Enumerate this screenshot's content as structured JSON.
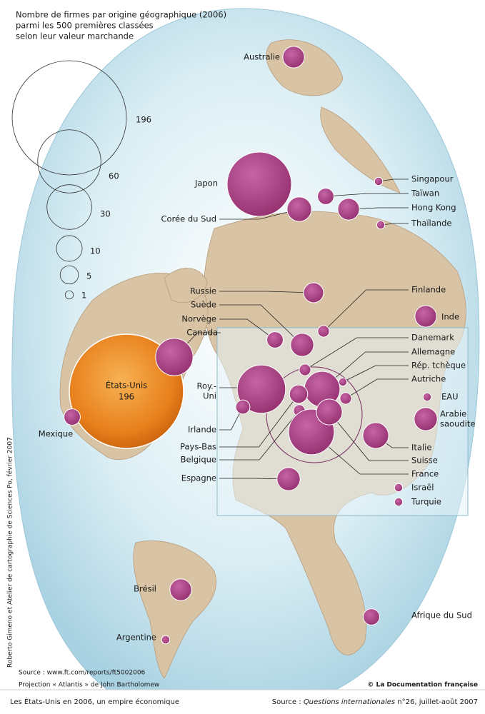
{
  "title_lines": [
    "Nombre de firmes par origine géographique (2006)",
    "parmi les 500 premières classées",
    "selon leur valeur marchande"
  ],
  "legend": {
    "sizes": [
      196,
      60,
      30,
      10,
      5,
      1
    ]
  },
  "countries": [
    {
      "name": "États-Unis",
      "firms": 196
    },
    {
      "name": "Canada",
      "firms": 21
    },
    {
      "name": "Mexique",
      "firms": 4
    },
    {
      "name": "Japon",
      "firms": 62
    },
    {
      "name": "Corée du Sud",
      "firms": 9
    },
    {
      "name": "Australie",
      "firms": 7
    },
    {
      "name": "Singapour",
      "firms": 1
    },
    {
      "name": "Taïwan",
      "firms": 4
    },
    {
      "name": "Hong Kong",
      "firms": 7
    },
    {
      "name": "Thaïlande",
      "firms": 1
    },
    {
      "name": "Russie",
      "firms": 6
    },
    {
      "name": "Finlande",
      "firms": 2
    },
    {
      "name": "Inde",
      "firms": 7
    },
    {
      "name": "Suède",
      "firms": 8
    },
    {
      "name": "Norvège",
      "firms": 4
    },
    {
      "name": "Danemark",
      "firms": 2
    },
    {
      "name": "Allemagne",
      "firms": 19
    },
    {
      "name": "Rép. tchèque",
      "firms": 1
    },
    {
      "name": "Autriche",
      "firms": 2
    },
    {
      "name": "EAU",
      "firms": 1
    },
    {
      "name": [
        "Arabie",
        "saoudite"
      ],
      "firms": 8
    },
    {
      "name": [
        "Roy.-",
        "Uni"
      ],
      "firms": 35
    },
    {
      "name": "Irlande",
      "firms": 3
    },
    {
      "name": "Pays-Bas",
      "firms": 5
    },
    {
      "name": "Belgique",
      "firms": 2
    },
    {
      "name": "France",
      "firms": 31
    },
    {
      "name": "Suisse",
      "firms": 10
    },
    {
      "name": "Italie",
      "firms": 10
    },
    {
      "name": "Espagne",
      "firms": 8
    },
    {
      "name": "Israël",
      "firms": 1
    },
    {
      "name": "Turquie",
      "firms": 1
    },
    {
      "name": "Brésil",
      "firms": 7
    },
    {
      "name": "Argentine",
      "firms": 1
    },
    {
      "name": "Afrique du Sud",
      "firms": 4
    }
  ],
  "credits": {
    "vertical": "Roberto Gimeno et Atelier de cartographie de Sciences Po, février 2007",
    "data_source": "Source : www.ft.com/reports/ft5002006",
    "projection": "Projection « Atlantis » de John Bartholomew",
    "copyright": "© La Documentation française"
  },
  "footer": {
    "caption": "Les États-Unis en 2006, un empire économique",
    "source_prefix": "Source : ",
    "source_title": "Questions internationales",
    "source_suffix": " n°26, juillet-août 2007"
  }
}
